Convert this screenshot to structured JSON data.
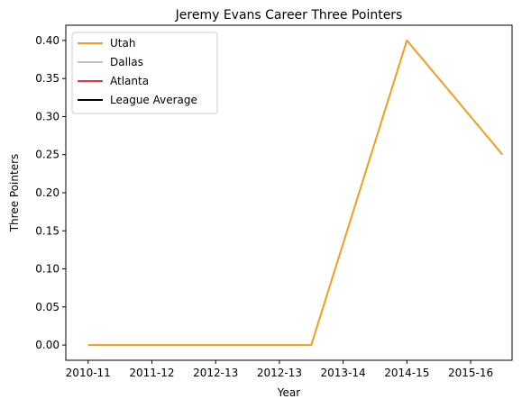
{
  "chart_data": {
    "type": "line",
    "title": "Jeremy Evans Career Three Pointers",
    "xlabel": "Year",
    "ylabel": "Three Pointers",
    "x_ticks": [
      {
        "pos": 2010.75,
        "label": "2010-11"
      },
      {
        "pos": 2011.75,
        "label": "2011-12"
      },
      {
        "pos": 2012.75,
        "label": "2012-13"
      },
      {
        "pos": 2013.75,
        "label": "2012-13"
      },
      {
        "pos": 2014.75,
        "label": "2013-14"
      },
      {
        "pos": 2015.75,
        "label": "2014-15"
      },
      {
        "pos": 2016.75,
        "label": "2015-16"
      }
    ],
    "xlim": [
      2010.4,
      2017.4
    ],
    "ylim": [
      -0.02,
      0.42
    ],
    "y_ticks": [
      0.0,
      0.05,
      0.1,
      0.15,
      0.2,
      0.25,
      0.3,
      0.35,
      0.4
    ],
    "y_tick_labels": [
      "0.00",
      "0.05",
      "0.10",
      "0.15",
      "0.20",
      "0.25",
      "0.30",
      "0.35",
      "0.40"
    ],
    "series": [
      {
        "name": "Utah",
        "color": "#f39c1f",
        "x": [
          2010.75,
          2014.25,
          2015.75,
          2017.25
        ],
        "y": [
          0.0,
          0.0,
          0.4,
          0.25
        ]
      },
      {
        "name": "Dallas",
        "color": "#bfbfbf",
        "x": [],
        "y": []
      },
      {
        "name": "Atlanta",
        "color": "#e03a3e",
        "x": [],
        "y": []
      },
      {
        "name": "League Average",
        "color": "#000000",
        "x": [],
        "y": []
      }
    ],
    "grid": false,
    "legend_position": "upper left"
  }
}
